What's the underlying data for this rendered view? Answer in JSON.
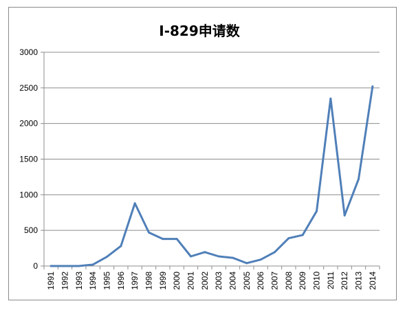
{
  "chart_data": {
    "type": "line",
    "title": "I-829申请数",
    "xlabel": "",
    "ylabel": "",
    "categories": [
      "1991",
      "1992",
      "1993",
      "1994",
      "1995",
      "1996",
      "1997",
      "1998",
      "1999",
      "2000",
      "2001",
      "2002",
      "2003",
      "2004",
      "2005",
      "2006",
      "2007",
      "2008",
      "2009",
      "2010",
      "2011",
      "2012",
      "2013",
      "2014"
    ],
    "series": [
      {
        "values": [
          0,
          0,
          0,
          20,
          130,
          280,
          880,
          470,
          380,
          380,
          135,
          195,
          135,
          115,
          40,
          90,
          195,
          390,
          435,
          770,
          2350,
          710,
          1220,
          2520
        ],
        "color": "#4f7fb8"
      }
    ],
    "ylim": [
      0,
      3000
    ],
    "yticks": [
      0,
      500,
      1000,
      1500,
      2000,
      2500,
      3000
    ],
    "grid": true,
    "legend": "none"
  }
}
